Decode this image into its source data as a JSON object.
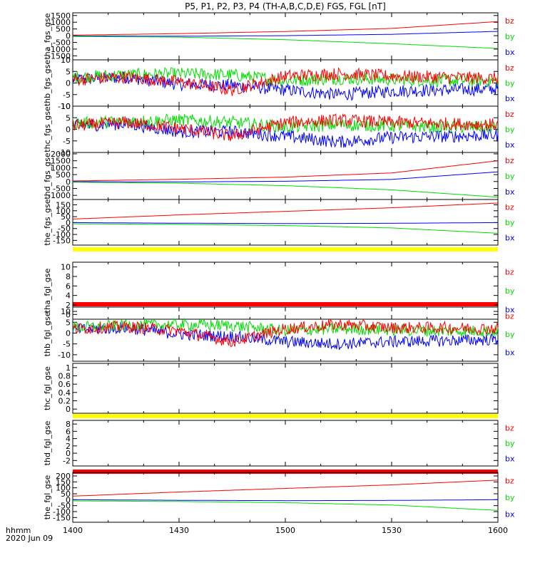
{
  "title": "P5, P1, P2, P3, P4 (TH-A,B,C,D,E) FGS, FGL [nT]",
  "time_axis": {
    "label_line1": "hhmm",
    "label_line2": "2020 Jun 09",
    "ticks": [
      "1400",
      "1430",
      "1500",
      "1530",
      "1600"
    ]
  },
  "colors": {
    "bx": "#0000ff",
    "by": "#00dd00",
    "bz": "#ff0000",
    "yellow_bar": "#ffff00",
    "red_bar": "#ff0000"
  },
  "chart_data": [
    {
      "type": "line",
      "panel": "tha_fgs_gse",
      "ylabel": "tha_fgs_gse",
      "ylim": [
        -1800,
        1700
      ],
      "yticks": [
        1500,
        1000,
        500,
        0,
        -500,
        -1000,
        -1500
      ],
      "legend": [
        "bz",
        "by",
        "bx"
      ],
      "x": [
        0,
        30,
        60,
        90,
        120
      ],
      "series": [
        {
          "name": "bz",
          "values": [
            40,
            150,
            310,
            540,
            1050
          ]
        },
        {
          "name": "by",
          "values": [
            -60,
            -110,
            -300,
            -600,
            -950
          ]
        },
        {
          "name": "bx",
          "values": [
            -20,
            -40,
            0,
            100,
            320
          ]
        }
      ]
    },
    {
      "type": "line",
      "panel": "thb_fgs_gse",
      "ylabel": "thb_fgs_gse",
      "ylim": [
        -10,
        10
      ],
      "yticks": [
        10,
        5,
        0,
        -5,
        -10
      ],
      "legend": [
        "bz",
        "by",
        "bx"
      ],
      "x": [
        0,
        15,
        30,
        45,
        60,
        75,
        90,
        105,
        120
      ],
      "series": [
        {
          "name": "bz",
          "values": [
            1.5,
            2.5,
            0.5,
            -3,
            3,
            4,
            3,
            2.5,
            2
          ]
        },
        {
          "name": "by",
          "values": [
            2.5,
            3.5,
            4,
            3.5,
            1,
            2,
            1.5,
            1,
            1
          ]
        },
        {
          "name": "bx",
          "values": [
            1.5,
            2.5,
            -0.5,
            -1,
            -3,
            -5,
            -3.5,
            -3,
            -2.5
          ]
        }
      ]
    },
    {
      "type": "line",
      "panel": "thc_fgs_gse",
      "ylabel": "thc_fgs_gse",
      "ylim": [
        -10,
        10
      ],
      "yticks": [
        10,
        5,
        0,
        -5,
        -10
      ],
      "legend": [
        "bz",
        "by",
        "bx"
      ],
      "x": [
        0,
        15,
        30,
        45,
        60,
        75,
        90,
        105,
        120
      ],
      "series": [
        {
          "name": "bz",
          "values": [
            1.5,
            3,
            0.5,
            -3,
            3,
            4,
            3,
            2.5,
            2
          ]
        },
        {
          "name": "by",
          "values": [
            2.5,
            3.5,
            4,
            3,
            1,
            2,
            1.5,
            1,
            1
          ]
        },
        {
          "name": "bx",
          "values": [
            1.5,
            2.5,
            -1,
            -1,
            -3,
            -5.5,
            -3.5,
            -3,
            -2.5
          ]
        }
      ]
    },
    {
      "type": "line",
      "panel": "thd_fgs_gse",
      "ylabel": "thd_fgs_gse",
      "ylim": [
        -1300,
        2100
      ],
      "yticks": [
        2000,
        1500,
        1000,
        500,
        0,
        -500,
        -1000
      ],
      "legend": [
        "bz",
        "by",
        "bx"
      ],
      "x": [
        0,
        30,
        60,
        90,
        120
      ],
      "series": [
        {
          "name": "bz",
          "values": [
            40,
            160,
            320,
            620,
            1500
          ]
        },
        {
          "name": "by",
          "values": [
            -50,
            -120,
            -300,
            -600,
            -1130
          ]
        },
        {
          "name": "bx",
          "values": [
            -10,
            -30,
            20,
            150,
            700
          ]
        }
      ]
    },
    {
      "type": "line",
      "panel": "the_fgs_gse",
      "ylabel": "the_fgs_gse",
      "ylim": [
        -190,
        195
      ],
      "yticks": [
        150,
        100,
        50,
        0,
        -50,
        -100,
        -150
      ],
      "legend": [
        "bz",
        "by",
        "bx"
      ],
      "x": [
        0,
        30,
        60,
        90,
        120
      ],
      "series": [
        {
          "name": "bz",
          "values": [
            30,
            65,
            95,
            125,
            165
          ]
        },
        {
          "name": "by",
          "values": [
            -10,
            -15,
            -25,
            -45,
            -90
          ]
        },
        {
          "name": "bx",
          "values": [
            0,
            -5,
            -8,
            -6,
            0
          ]
        }
      ]
    },
    {
      "type": "line",
      "panel": "tha_fgl_gse",
      "ylabel": "tha_fgl_gse",
      "ylim": [
        -1,
        11
      ],
      "yticks": [
        10,
        8,
        6,
        4,
        2,
        0
      ],
      "legend": [
        "bz",
        "by",
        "bx"
      ],
      "x": [],
      "series": []
    },
    {
      "type": "line",
      "panel": "thb_fgl_gse",
      "ylabel": "thb_fgl_gse",
      "ylim": [
        -13,
        12
      ],
      "yticks": [
        10,
        5,
        0,
        -5,
        -10
      ],
      "legend": [
        "bz",
        "by",
        "bx"
      ],
      "x": [
        0,
        15,
        30,
        45,
        60,
        75,
        90,
        105,
        120
      ],
      "series": [
        {
          "name": "bz",
          "values": [
            2,
            3,
            1,
            -4,
            2,
            4,
            2.5,
            2.5,
            2
          ]
        },
        {
          "name": "by",
          "values": [
            2.5,
            3.5,
            4,
            3.5,
            1,
            2,
            1.5,
            1,
            1
          ]
        },
        {
          "name": "bx",
          "values": [
            1.5,
            2.5,
            -0.5,
            -1.5,
            -4,
            -5,
            -4,
            -3.5,
            -3
          ]
        }
      ]
    },
    {
      "type": "line",
      "panel": "thc_fgl_gse",
      "ylabel": "thc_fgl_gse",
      "ylim": [
        -0.1,
        1.1
      ],
      "yticks": [
        1.0,
        0.8,
        0.6,
        0.4,
        0.2,
        0.0
      ],
      "legend": [],
      "x": [],
      "series": []
    },
    {
      "type": "line",
      "panel": "thd_fgl_gse",
      "ylabel": "thd_fgl_gse",
      "ylim": [
        -3.5,
        9
      ],
      "yticks": [
        8,
        6,
        4,
        2,
        0,
        -2
      ],
      "legend": [
        "bz",
        "by",
        "bx"
      ],
      "x": [],
      "series": []
    },
    {
      "type": "line",
      "panel": "the_fgl_gse",
      "ylabel": "the_fgl_gse",
      "ylim": [
        -190,
        230
      ],
      "yticks": [
        200,
        150,
        100,
        50,
        0,
        -50,
        -100,
        -150
      ],
      "legend": [
        "bz",
        "by",
        "bx"
      ],
      "x": [
        0,
        30,
        60,
        90,
        120
      ],
      "series": [
        {
          "name": "bz",
          "values": [
            30,
            65,
            95,
            125,
            165
          ]
        },
        {
          "name": "by",
          "values": [
            -10,
            -15,
            -25,
            -45,
            -90
          ]
        },
        {
          "name": "bx",
          "values": [
            0,
            -5,
            -8,
            -6,
            0
          ]
        }
      ]
    }
  ]
}
